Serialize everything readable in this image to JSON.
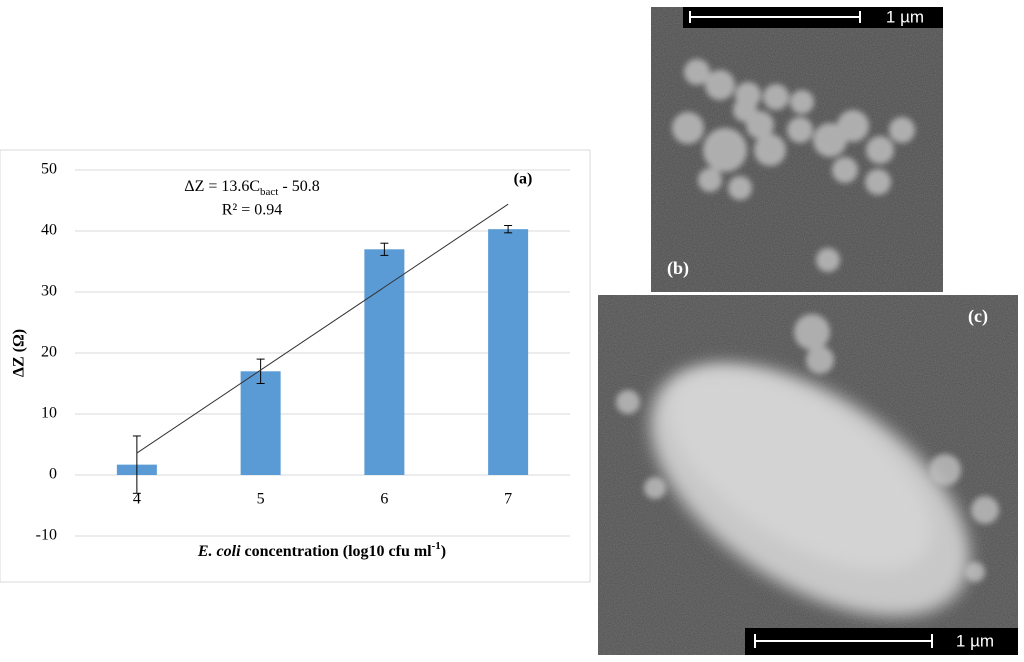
{
  "chart_data": {
    "type": "bar",
    "categories": [
      "4",
      "5",
      "6",
      "7"
    ],
    "values": [
      1.7,
      17,
      37,
      40.3
    ],
    "errors": [
      4.7,
      2,
      1,
      0.6
    ],
    "color": "#5b9bd5",
    "trendline": [
      3.6,
      17.2,
      30.8,
      44.4
    ],
    "ylim": [
      -10,
      50
    ],
    "yticks": [
      -10,
      0,
      10,
      20,
      30,
      40,
      50
    ],
    "grid": true,
    "y_label": "ΔZ (Ω)",
    "x_label": {
      "italic": "E. coli",
      "text": " concentration (log10 cfu ml",
      "sup": "-1",
      "end": ")"
    },
    "equation": {
      "text": "ΔZ = 13.6C",
      "sub": "bact",
      "end": " - 50.8"
    },
    "r_squared": "R² = 0.94",
    "panel_label": "(a)"
  },
  "images": [
    {
      "label": "(b)",
      "scale": "1 µm"
    },
    {
      "label": "(c)",
      "scale": "1 µm"
    }
  ]
}
